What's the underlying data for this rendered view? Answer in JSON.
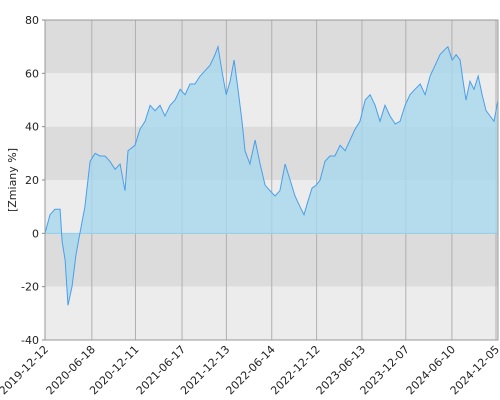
{
  "chart_data": {
    "type": "area",
    "y_label": "[Zmiany %]",
    "color": "#4a9ee8",
    "fill": "#a8d8ee",
    "band_colors": [
      "#dcdcdc",
      "#ececec"
    ],
    "ylim": [
      -40,
      80
    ],
    "yticks": [
      -40,
      -20,
      0,
      20,
      40,
      60,
      80
    ],
    "xlim": [
      "2019-12-12",
      "2024-12-13"
    ],
    "xticks": [
      "2019-12-12",
      "2020-06-18",
      "2020-12-11",
      "2021-06-17",
      "2021-12-13",
      "2022-06-14",
      "2022-12-12",
      "2023-06-13",
      "2023-12-07",
      "2024-06-10",
      "2024-12-05"
    ],
    "x": [
      "2019-12-12",
      "2020-01-01",
      "2020-01-21",
      "2020-02-11",
      "2020-02-19",
      "2020-03-02",
      "2020-03-14",
      "2020-03-30",
      "2020-04-15",
      "2020-05-01",
      "2020-05-21",
      "2020-06-11",
      "2020-07-01",
      "2020-07-21",
      "2020-08-10",
      "2020-08-30",
      "2020-09-20",
      "2020-10-10",
      "2020-10-30",
      "2020-11-11",
      "2020-12-09",
      "2020-12-29",
      "2021-01-19",
      "2021-02-08",
      "2021-02-28",
      "2021-03-20",
      "2021-04-09",
      "2021-04-30",
      "2021-05-20",
      "2021-06-09",
      "2021-06-29",
      "2021-07-19",
      "2021-08-08",
      "2021-08-29",
      "2021-09-18",
      "2021-10-08",
      "2021-10-28",
      "2021-11-09",
      "2021-11-25",
      "2021-12-12",
      "2021-12-28",
      "2022-01-13",
      "2022-01-29",
      "2022-02-14",
      "2022-02-26",
      "2022-03-18",
      "2022-04-08",
      "2022-04-28",
      "2022-05-18",
      "2022-06-07",
      "2022-06-27",
      "2022-07-17",
      "2022-08-07",
      "2022-08-27",
      "2022-09-16",
      "2022-10-06",
      "2022-10-22",
      "2022-11-07",
      "2022-11-24",
      "2022-12-10",
      "2022-12-26",
      "2023-01-15",
      "2023-02-04",
      "2023-02-24",
      "2023-03-17",
      "2023-04-06",
      "2023-04-26",
      "2023-05-16",
      "2023-06-05",
      "2023-06-26",
      "2023-07-16",
      "2023-08-05",
      "2023-08-25",
      "2023-09-14",
      "2023-10-04",
      "2023-10-25",
      "2023-11-14",
      "2023-12-04",
      "2023-12-24",
      "2024-01-13",
      "2024-02-03",
      "2024-02-23",
      "2024-03-14",
      "2024-04-03",
      "2024-04-23",
      "2024-05-13",
      "2024-05-25",
      "2024-06-11",
      "2024-06-27",
      "2024-07-13",
      "2024-07-25",
      "2024-08-06",
      "2024-08-22",
      "2024-09-07",
      "2024-09-24",
      "2024-10-10",
      "2024-10-26",
      "2024-11-11",
      "2024-11-27",
      "2024-12-13"
    ],
    "values": [
      0,
      7,
      9,
      9,
      -3,
      -10,
      -27,
      -20,
      -8,
      0,
      10,
      27,
      30,
      29,
      29,
      27,
      24,
      26,
      16,
      31,
      33,
      39,
      42,
      48,
      46,
      48,
      44,
      48,
      50,
      54,
      52,
      56,
      56,
      59,
      61,
      63,
      67,
      70,
      61,
      52,
      57,
      65,
      54,
      42,
      31,
      26,
      35,
      26,
      18,
      16,
      14,
      16,
      26,
      20,
      14,
      10,
      7,
      12,
      17,
      18,
      20,
      27,
      29,
      29,
      33,
      31,
      35,
      39,
      42,
      50,
      52,
      48,
      42,
      48,
      44,
      41,
      42,
      48,
      52,
      54,
      56,
      52,
      59,
      63,
      67,
      69,
      70,
      65,
      67,
      65,
      57,
      50,
      57,
      54,
      59,
      52,
      46,
      44,
      42,
      50
    ]
  }
}
